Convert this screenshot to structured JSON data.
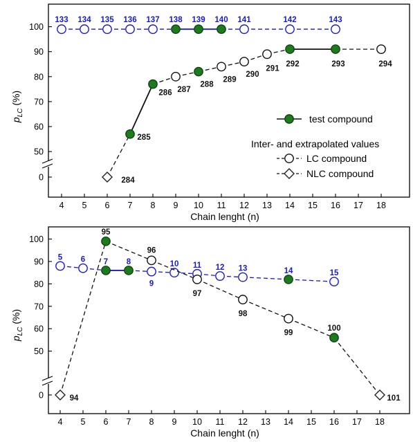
{
  "chart_data": [
    {
      "type": "scatter",
      "xlabel": "Chain lenght (n)",
      "ylabel": "p_LC (%)",
      "ylabel_main": "p",
      "ylabel_sub": "LC",
      "ylabel_unit": "(%)",
      "xticks": [
        4,
        5,
        6,
        7,
        8,
        9,
        10,
        11,
        12,
        13,
        14,
        15,
        16,
        17,
        18
      ],
      "yticks": [
        0,
        50,
        60,
        70,
        80,
        90,
        100
      ],
      "axis_break": "between 0 and 50",
      "legend_position": "right",
      "legend": {
        "test": "test compound",
        "heading": "Inter- and extrapolated values",
        "lc": "LC compound",
        "nlc": "NLC compound"
      },
      "series": [
        {
          "color": "#1a1acc",
          "points": [
            {
              "x": 4,
              "y": 99,
              "label": "133",
              "kind": "lc"
            },
            {
              "x": 5,
              "y": 99,
              "label": "134",
              "kind": "lc"
            },
            {
              "x": 6,
              "y": 99,
              "label": "135",
              "kind": "lc"
            },
            {
              "x": 7,
              "y": 99,
              "label": "136",
              "kind": "lc"
            },
            {
              "x": 8,
              "y": 99,
              "label": "137",
              "kind": "lc"
            },
            {
              "x": 9,
              "y": 99,
              "label": "138",
              "kind": "test"
            },
            {
              "x": 10,
              "y": 99,
              "label": "139",
              "kind": "test"
            },
            {
              "x": 11,
              "y": 99,
              "label": "140",
              "kind": "test"
            },
            {
              "x": 12,
              "y": 99,
              "label": "141",
              "kind": "lc"
            },
            {
              "x": 14,
              "y": 99,
              "label": "142",
              "kind": "lc"
            },
            {
              "x": 16,
              "y": 99,
              "label": "143",
              "kind": "lc"
            }
          ]
        },
        {
          "color": "#111111",
          "points": [
            {
              "x": 6,
              "y": 0,
              "label": "284",
              "kind": "nlc"
            },
            {
              "x": 7,
              "y": 57,
              "label": "285",
              "kind": "test"
            },
            {
              "x": 8,
              "y": 77,
              "label": "286",
              "kind": "test"
            },
            {
              "x": 9,
              "y": 80,
              "label": "287",
              "kind": "lc"
            },
            {
              "x": 10,
              "y": 82,
              "label": "288",
              "kind": "test"
            },
            {
              "x": 11,
              "y": 84,
              "label": "289",
              "kind": "lc"
            },
            {
              "x": 12,
              "y": 86,
              "label": "290",
              "kind": "lc"
            },
            {
              "x": 13,
              "y": 89,
              "label": "291",
              "kind": "lc"
            },
            {
              "x": 14,
              "y": 91,
              "label": "292",
              "kind": "test"
            },
            {
              "x": 16,
              "y": 91,
              "label": "293",
              "kind": "test"
            },
            {
              "x": 18,
              "y": 91,
              "label": "294",
              "kind": "lc"
            }
          ]
        }
      ]
    },
    {
      "type": "scatter",
      "xlabel": "Chain lenght (n)",
      "ylabel": "p_LC (%)",
      "ylabel_main": "p",
      "ylabel_sub": "LC",
      "ylabel_unit": "(%)",
      "xticks": [
        4,
        5,
        6,
        7,
        8,
        9,
        10,
        11,
        12,
        13,
        14,
        15,
        16,
        17,
        18
      ],
      "yticks": [
        0,
        50,
        60,
        70,
        80,
        90,
        100
      ],
      "axis_break": "between 0 and 50",
      "series": [
        {
          "color": "#1a1acc",
          "points": [
            {
              "x": 4,
              "y": 88,
              "label": "5",
              "kind": "lc"
            },
            {
              "x": 5,
              "y": 87,
              "label": "6",
              "kind": "lc"
            },
            {
              "x": 6,
              "y": 86,
              "label": "7",
              "kind": "test"
            },
            {
              "x": 7,
              "y": 86,
              "label": "8",
              "kind": "test"
            },
            {
              "x": 8,
              "y": 85.5,
              "label": "9",
              "kind": "lc"
            },
            {
              "x": 9,
              "y": 85,
              "label": "10",
              "kind": "lc"
            },
            {
              "x": 10,
              "y": 84.5,
              "label": "11",
              "kind": "lc"
            },
            {
              "x": 11,
              "y": 83.5,
              "label": "12",
              "kind": "lc"
            },
            {
              "x": 12,
              "y": 83,
              "label": "13",
              "kind": "lc"
            },
            {
              "x": 14,
              "y": 82,
              "label": "14",
              "kind": "test"
            },
            {
              "x": 16,
              "y": 81,
              "label": "15",
              "kind": "lc"
            }
          ]
        },
        {
          "color": "#111111",
          "points": [
            {
              "x": 4,
              "y": 0,
              "label": "94",
              "kind": "nlc"
            },
            {
              "x": 6,
              "y": 99,
              "label": "95",
              "kind": "test"
            },
            {
              "x": 8,
              "y": 90.5,
              "label": "96",
              "kind": "lc"
            },
            {
              "x": 10,
              "y": 82,
              "label": "97",
              "kind": "lc"
            },
            {
              "x": 12,
              "y": 73,
              "label": "98",
              "kind": "lc"
            },
            {
              "x": 14,
              "y": 64.5,
              "label": "99",
              "kind": "lc"
            },
            {
              "x": 16,
              "y": 56,
              "label": "100",
              "kind": "test"
            },
            {
              "x": 18,
              "y": 0,
              "label": "101",
              "kind": "nlc"
            }
          ]
        }
      ]
    }
  ]
}
